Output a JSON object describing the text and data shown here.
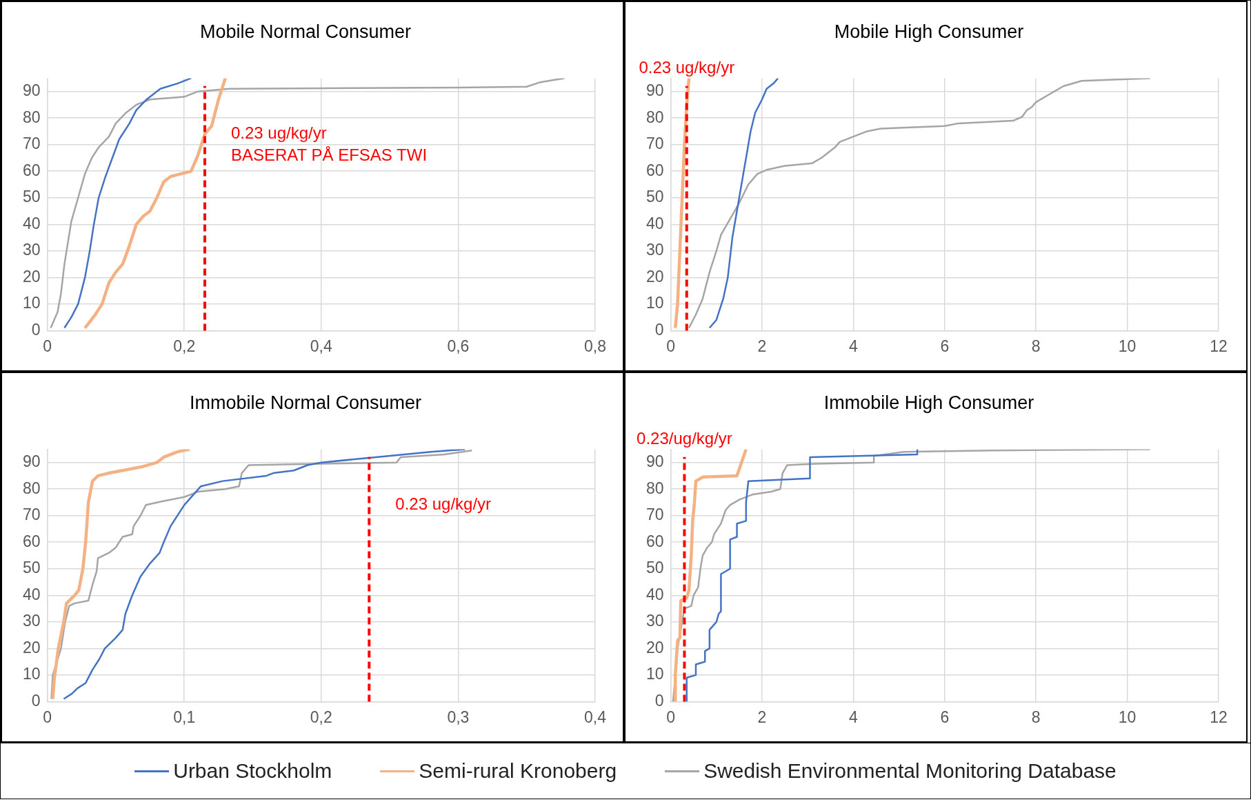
{
  "chart_data": [
    {
      "type": "line",
      "title": "Mobile Normal Consumer",
      "xlim": [
        0,
        0.8
      ],
      "xticks": [
        0,
        {
          "value": 0.2,
          "label": "0,2"
        },
        {
          "value": 0.4,
          "label": "0,4"
        },
        {
          "value": 0.6,
          "label": "0,6"
        },
        {
          "value": 0.8,
          "label": "0,8"
        }
      ],
      "ylim": [
        0,
        95
      ],
      "yticks": [
        0,
        10,
        20,
        30,
        40,
        50,
        60,
        70,
        80,
        90
      ],
      "grid": true,
      "legend": "bottom",
      "marker": "none",
      "line_style": "solid",
      "ref_lines": [
        {
          "axis": "x",
          "value": 0.23,
          "label": "0.23 ug/kg/yr\nBASERAT PÅ EFSAS TWI",
          "color": "#ff0000",
          "line_style": "dashed"
        }
      ],
      "series": [
        {
          "name": "Urban Stockholm",
          "color": "#4472c4",
          "x": [
            0.025,
            0.035,
            0.045,
            0.055,
            0.062,
            0.068,
            0.075,
            0.085,
            0.095,
            0.105,
            0.12,
            0.13,
            0.145,
            0.165,
            0.19,
            0.21
          ],
          "values": [
            1,
            5,
            10,
            20,
            30,
            40,
            50,
            58,
            65,
            72,
            78,
            83,
            87,
            91,
            93,
            95
          ]
        },
        {
          "name": "Semi-rural Kronoberg",
          "color": "#f4b183",
          "x": [
            0.055,
            0.07,
            0.08,
            0.09,
            0.1,
            0.11,
            0.12,
            0.13,
            0.14,
            0.15,
            0.16,
            0.17,
            0.18,
            0.21,
            0.22,
            0.23,
            0.24,
            0.25,
            0.26
          ],
          "values": [
            1,
            6,
            10,
            18,
            22,
            25,
            32,
            40,
            43,
            45,
            50,
            56,
            58,
            60,
            66,
            74,
            77,
            87,
            95
          ]
        },
        {
          "name": "Swedish Environmental Monitoring Database",
          "color": "#a5a5a5",
          "x": [
            0.005,
            0.015,
            0.02,
            0.025,
            0.03,
            0.035,
            0.045,
            0.055,
            0.065,
            0.075,
            0.09,
            0.1,
            0.115,
            0.13,
            0.15,
            0.2,
            0.22,
            0.265,
            0.4,
            0.6,
            0.7,
            0.72,
            0.755
          ],
          "values": [
            1,
            7,
            14,
            25,
            33,
            41,
            50,
            59,
            65,
            69,
            73,
            78,
            82,
            85,
            87,
            88,
            90,
            91,
            91.2,
            91.5,
            91.8,
            93.5,
            95
          ]
        }
      ]
    },
    {
      "type": "line",
      "title": "Mobile High Consumer",
      "xlim": [
        0,
        12
      ],
      "xticks": [
        0,
        2,
        4,
        6,
        8,
        10,
        12
      ],
      "ylim": [
        0,
        95
      ],
      "yticks": [
        0,
        10,
        20,
        30,
        40,
        50,
        60,
        70,
        80,
        90
      ],
      "grid": true,
      "marker": "none",
      "line_style": "solid",
      "ref_lines": [
        {
          "axis": "x",
          "value": 0.35,
          "label": "0.23 ug/kg/yr",
          "color": "#ff0000",
          "line_style": "dashed"
        }
      ],
      "series": [
        {
          "color": "#4472c4",
          "x": [
            0.85,
            1.0,
            1.15,
            1.25,
            1.35,
            1.45,
            1.55,
            1.65,
            1.75,
            1.85,
            2.0,
            2.1,
            2.25,
            2.35
          ],
          "values": [
            1,
            4,
            12,
            20,
            35,
            45,
            55,
            65,
            75,
            82,
            87,
            91,
            93,
            95
          ]
        },
        {
          "color": "#f4b183",
          "x": [
            0.1,
            0.15,
            0.2,
            0.25,
            0.3,
            0.35,
            0.4
          ],
          "values": [
            1,
            10,
            30,
            50,
            70,
            85,
            95
          ]
        },
        {
          "color": "#a5a5a5",
          "x": [
            0.4,
            0.55,
            0.7,
            0.85,
            1.0,
            1.1,
            1.3,
            1.5,
            1.7,
            1.9,
            2.1,
            2.5,
            3.1,
            3.3,
            3.6,
            3.7,
            4.0,
            4.3,
            4.6,
            6.0,
            6.3,
            7.5,
            7.7,
            7.8,
            7.9,
            8.0,
            8.3,
            8.6,
            9.0,
            10.5
          ],
          "values": [
            1,
            6,
            12,
            22,
            30,
            36,
            42,
            48,
            55,
            59,
            60.5,
            62,
            63,
            65,
            69,
            71,
            73,
            75,
            76,
            77,
            78,
            79,
            80.5,
            83,
            84,
            86,
            89,
            92,
            94,
            95
          ]
        }
      ]
    },
    {
      "type": "line",
      "title": "Immobile Normal Consumer",
      "xlim": [
        0,
        0.4
      ],
      "xticks": [
        0,
        {
          "value": 0.1,
          "label": "0,1"
        },
        {
          "value": 0.2,
          "label": "0,2"
        },
        {
          "value": 0.3,
          "label": "0,3"
        },
        {
          "value": 0.4,
          "label": "0,4"
        }
      ],
      "ylim": [
        0,
        95
      ],
      "yticks": [
        0,
        10,
        20,
        30,
        40,
        50,
        60,
        70,
        80,
        90
      ],
      "grid": true,
      "marker": "none",
      "line_style": "solid",
      "ref_lines": [
        {
          "axis": "x",
          "value": 0.235,
          "label": "0.23 ug/kg/yr",
          "color": "#ff0000",
          "line_style": "dashed"
        }
      ],
      "series": [
        {
          "color": "#4472c4",
          "x": [
            0.012,
            0.018,
            0.022,
            0.028,
            0.033,
            0.038,
            0.042,
            0.05,
            0.055,
            0.057,
            0.062,
            0.068,
            0.075,
            0.082,
            0.085,
            0.09,
            0.1,
            0.112,
            0.128,
            0.16,
            0.165,
            0.18,
            0.19,
            0.2,
            0.24,
            0.28,
            0.305
          ],
          "values": [
            1,
            3,
            5,
            7,
            12,
            16,
            20,
            24,
            27,
            33,
            40,
            47,
            52,
            56,
            60,
            66,
            74,
            81,
            83,
            85,
            86,
            87,
            89,
            90,
            92,
            94,
            95
          ]
        },
        {
          "color": "#f4b183",
          "x": [
            0.004,
            0.005,
            0.008,
            0.012,
            0.014,
            0.02,
            0.023,
            0.026,
            0.028,
            0.03,
            0.033,
            0.037,
            0.045,
            0.055,
            0.07,
            0.08,
            0.085,
            0.095,
            0.104
          ],
          "values": [
            1,
            8,
            20,
            30,
            37,
            40,
            42,
            50,
            60,
            75,
            83,
            85,
            86,
            87,
            88.5,
            90,
            92,
            94,
            95
          ]
        },
        {
          "color": "#a5a5a5",
          "x": [
            0.003,
            0.004,
            0.01,
            0.013,
            0.016,
            0.02,
            0.03,
            0.033,
            0.036,
            0.037,
            0.045,
            0.05,
            0.055,
            0.062,
            0.063,
            0.068,
            0.072,
            0.085,
            0.1,
            0.11,
            0.13,
            0.14,
            0.142,
            0.147,
            0.2,
            0.255,
            0.258,
            0.29,
            0.31
          ],
          "values": [
            1,
            10,
            20,
            30,
            36,
            37,
            38,
            44,
            49,
            54,
            56,
            58,
            62,
            63,
            66,
            70,
            74,
            75.5,
            77,
            79,
            80,
            81,
            86,
            89,
            89.5,
            90,
            92,
            93,
            94.5
          ]
        }
      ]
    },
    {
      "type": "line",
      "title": "Immobile High Consumer",
      "xlim": [
        0,
        12
      ],
      "xticks": [
        0,
        2,
        4,
        6,
        8,
        10,
        12
      ],
      "ylim": [
        0,
        95
      ],
      "yticks": [
        0,
        10,
        20,
        30,
        40,
        50,
        60,
        70,
        80,
        90
      ],
      "grid": true,
      "marker": "none",
      "line_style": "solid",
      "ref_lines": [
        {
          "axis": "x",
          "value": 0.3,
          "label": "0.23/ug/kg/yr",
          "color": "#ff0000",
          "line_style": "dashed"
        }
      ],
      "series": [
        {
          "color": "#4472c4",
          "x": [
            0.35,
            0.35,
            0.55,
            0.55,
            0.75,
            0.75,
            0.85,
            0.85,
            1.0,
            1.05,
            1.1,
            1.1,
            1.3,
            1.3,
            1.45,
            1.45,
            1.65,
            1.65,
            1.7,
            3.05,
            3.05,
            5.4,
            5.4
          ],
          "values": [
            0,
            9,
            10,
            14,
            15,
            19,
            20,
            27,
            30,
            33,
            34,
            48,
            50,
            61,
            62,
            67,
            68,
            75,
            83,
            84,
            92,
            93,
            95
          ]
        },
        {
          "color": "#f4b183",
          "x": [
            0.1,
            0.1,
            0.15,
            0.2,
            0.22,
            0.35,
            0.4,
            0.45,
            0.48,
            0.52,
            0.55,
            0.7,
            1.45,
            1.55,
            1.65
          ],
          "values": [
            0,
            10,
            23,
            24,
            38,
            39,
            42,
            55,
            68,
            75,
            83,
            84.5,
            85,
            90,
            95
          ]
        },
        {
          "color": "#a5a5a5",
          "x": [
            0.05,
            0.1,
            0.15,
            0.25,
            0.3,
            0.45,
            0.5,
            0.6,
            0.65,
            0.7,
            0.8,
            0.9,
            0.95,
            1.1,
            1.2,
            1.3,
            1.5,
            1.8,
            2.2,
            2.4,
            2.45,
            2.55,
            3.2,
            4.45,
            4.45,
            5.1,
            7,
            10.5
          ],
          "values": [
            0,
            9,
            20,
            30,
            35,
            36,
            40,
            43,
            50,
            55,
            58,
            60,
            63,
            67,
            72,
            74,
            76,
            78,
            79,
            80,
            86,
            89,
            89.5,
            90,
            92.5,
            94,
            94.5,
            95
          ]
        }
      ]
    }
  ]
}
